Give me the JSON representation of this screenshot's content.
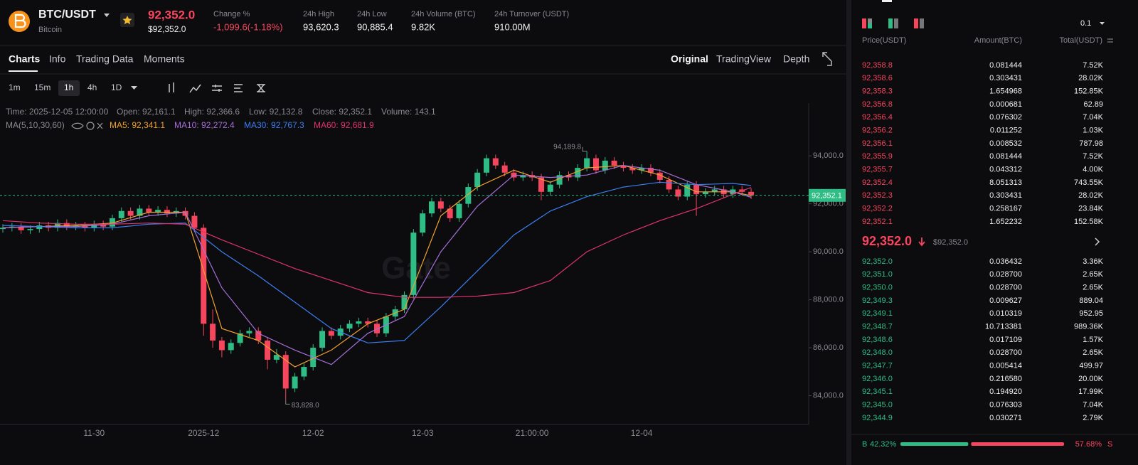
{
  "header": {
    "pair": "BTC/USDT",
    "name": "Bitcoin",
    "price": "92,352.0",
    "price_usd": "$92,352.0",
    "stats": [
      {
        "label": "Change %",
        "value": "-1,099.6(-1.18%)"
      },
      {
        "label": "24h High",
        "value": "93,620.3"
      },
      {
        "label": "24h Low",
        "value": "90,885.4"
      },
      {
        "label": "24h Volume (BTC)",
        "value": "9.82K"
      },
      {
        "label": "24h Turnover (USDT)",
        "value": "910.00M"
      }
    ]
  },
  "tabs": [
    "Charts",
    "Info",
    "Trading Data",
    "Moments"
  ],
  "views": [
    "Original",
    "TradingView",
    "Depth"
  ],
  "intervals": [
    "1m",
    "15m",
    "1h",
    "4h",
    "1D"
  ],
  "ohlc_info": [
    "Time: 2025-12-05 12:00:00",
    "Open: 92,161.1",
    "High: 92,366.6",
    "Low: 92,132.8",
    "Close: 92,352.1",
    "Volume: 143.1"
  ],
  "ma_title": "MA(5,10,30,60)",
  "chart_data": {
    "type": "candlestick",
    "watermark": "Gate",
    "up_color": "#2ebd85",
    "down_color": "#f6465d",
    "ylim": [
      82800,
      96200
    ],
    "yticks": [
      {
        "value": 84000,
        "label": "84,000.0"
      },
      {
        "value": 86000,
        "label": "86,000.0"
      },
      {
        "value": 88000,
        "label": "88,000.0"
      },
      {
        "value": 90000,
        "label": "90,000.0"
      },
      {
        "value": 92000,
        "label": "92,000.0"
      },
      {
        "value": 94000,
        "label": "94,000.0"
      }
    ],
    "grid": false,
    "categories": [
      null,
      null,
      null,
      null,
      null,
      null,
      null,
      null,
      null,
      null,
      "11-30",
      null,
      null,
      null,
      null,
      null,
      null,
      null,
      null,
      null,
      null,
      null,
      "2025-12",
      null,
      null,
      null,
      null,
      null,
      null,
      null,
      null,
      null,
      null,
      null,
      "12-02",
      null,
      null,
      null,
      null,
      null,
      null,
      null,
      null,
      null,
      null,
      null,
      "12-03",
      null,
      null,
      null,
      null,
      null,
      null,
      null,
      null,
      null,
      null,
      null,
      "21:00:00",
      null,
      null,
      null,
      null,
      null,
      null,
      null,
      null,
      null,
      null,
      null,
      "12-04",
      null,
      null,
      null,
      null,
      null,
      null,
      null,
      null,
      null,
      null,
      null,
      null
    ],
    "open": [
      90950,
      91000,
      91050,
      90900,
      90950,
      91100,
      91000,
      91200,
      91050,
      91100,
      91000,
      91150,
      91050,
      91400,
      91700,
      91500,
      91800,
      91650,
      91750,
      91600,
      91700,
      91500,
      91000,
      87000,
      86300,
      85900,
      86200,
      86600,
      86700,
      86300,
      85500,
      85700,
      84300,
      84800,
      85200,
      86000,
      86700,
      86500,
      86800,
      87000,
      87100,
      87000,
      86600,
      87300,
      87600,
      88200,
      90800,
      91600,
      92100,
      91800,
      91400,
      92000,
      92700,
      93300,
      93900,
      93600,
      93300,
      93100,
      93200,
      93100,
      92500,
      92800,
      93200,
      93100,
      93500,
      93900,
      93400,
      93800,
      93600,
      93500,
      93400,
      93500,
      93300,
      93000,
      92600,
      92300,
      92800,
      92400,
      92500,
      92600,
      92400,
      92600,
      92500
    ],
    "high": [
      91150,
      91200,
      91200,
      91100,
      91250,
      91250,
      91350,
      91350,
      91250,
      91250,
      91300,
      91300,
      91550,
      91850,
      91850,
      91950,
      91950,
      91900,
      91900,
      91850,
      91850,
      91650,
      91150,
      87600,
      86450,
      86350,
      86750,
      86850,
      86850,
      86450,
      85950,
      85850,
      84950,
      85350,
      86150,
      86850,
      86850,
      86950,
      87150,
      87250,
      87250,
      87150,
      87450,
      87750,
      88350,
      90950,
      91750,
      92250,
      92250,
      91950,
      92150,
      92850,
      93450,
      94050,
      94050,
      93750,
      93450,
      93350,
      93350,
      93250,
      92950,
      93350,
      93350,
      93650,
      94189.8,
      94050,
      93950,
      93950,
      93750,
      93650,
      93650,
      93650,
      93450,
      93150,
      92750,
      92950,
      92950,
      92650,
      92750,
      92750,
      92750,
      92750,
      92650
    ],
    "low": [
      90800,
      90850,
      90750,
      90750,
      90800,
      90850,
      90850,
      90900,
      90900,
      90850,
      90850,
      90900,
      90900,
      91250,
      91350,
      91350,
      91500,
      91500,
      91450,
      91450,
      91350,
      90850,
      86500,
      86000,
      85600,
      85750,
      86050,
      86450,
      86150,
      85100,
      85350,
      83828,
      84150,
      84650,
      85050,
      85850,
      86350,
      86350,
      86650,
      86850,
      86850,
      86450,
      86450,
      87150,
      87450,
      88050,
      90650,
      91450,
      91650,
      91250,
      91250,
      91850,
      92550,
      93150,
      93450,
      93150,
      92950,
      92950,
      92950,
      92150,
      92350,
      92650,
      92950,
      92950,
      93350,
      93250,
      93250,
      93450,
      93350,
      93250,
      93250,
      93150,
      92850,
      92450,
      92150,
      92150,
      91500,
      92250,
      92350,
      92250,
      92250,
      92350,
      92200
    ],
    "close": [
      91000,
      91050,
      90900,
      90950,
      91100,
      91000,
      91200,
      91050,
      91100,
      91000,
      91150,
      91050,
      91400,
      91700,
      91500,
      91800,
      91650,
      91750,
      91600,
      91700,
      91500,
      91000,
      87000,
      86300,
      85900,
      86200,
      86600,
      86700,
      86300,
      85500,
      85700,
      84300,
      84800,
      85200,
      86000,
      86700,
      86500,
      86800,
      87000,
      87100,
      87000,
      86600,
      87300,
      87600,
      88200,
      90800,
      91600,
      92100,
      91800,
      91400,
      92000,
      92700,
      93300,
      93900,
      93600,
      93300,
      93100,
      93200,
      93100,
      92500,
      92800,
      93200,
      93100,
      93500,
      93900,
      93400,
      93800,
      93600,
      93500,
      93400,
      93500,
      93300,
      93000,
      92600,
      92300,
      92800,
      92400,
      92500,
      92600,
      92400,
      92600,
      92500,
      92352.1
    ],
    "max_label": "94,189.8",
    "min_label": "83,828.0",
    "last_label": "92,352.1",
    "series": [
      {
        "name": "MA5: 92,341.1",
        "color": "#f0a02c",
        "x": [
          0,
          4,
          8,
          12,
          16,
          20,
          24,
          28,
          32,
          36,
          40,
          44,
          48,
          52,
          56,
          60,
          64,
          68,
          72,
          76,
          80,
          82
        ],
        "values": [
          91000,
          91050,
          91100,
          91200,
          91650,
          91650,
          86800,
          86300,
          85200,
          85900,
          87000,
          87600,
          91500,
          92700,
          93400,
          92900,
          93500,
          93600,
          93200,
          92500,
          92500,
          92341.1
        ]
      },
      {
        "name": "MA10: 92,272.4",
        "color": "#a66fd8",
        "x": [
          0,
          4,
          8,
          12,
          16,
          20,
          24,
          28,
          32,
          36,
          40,
          44,
          48,
          52,
          56,
          60,
          64,
          68,
          72,
          76,
          80,
          82
        ],
        "values": [
          91000,
          91050,
          91050,
          91150,
          91500,
          91650,
          88500,
          86600,
          85900,
          85300,
          86600,
          87300,
          90000,
          91900,
          93200,
          93100,
          93200,
          93600,
          93400,
          92800,
          92500,
          92272.4
        ]
      },
      {
        "name": "MA30: 92,767.3",
        "color": "#3b7ff0",
        "x": [
          0,
          4,
          8,
          12,
          16,
          20,
          24,
          28,
          32,
          36,
          40,
          44,
          48,
          52,
          56,
          60,
          64,
          68,
          72,
          76,
          80,
          82
        ],
        "values": [
          91100,
          91050,
          91000,
          91000,
          91150,
          91200,
          90000,
          89000,
          87900,
          86800,
          86200,
          86300,
          87700,
          89200,
          90700,
          91700,
          92300,
          92700,
          92900,
          92800,
          92850,
          92767.3
        ]
      },
      {
        "name": "MA60: 92,681.9",
        "color": "#e0336c",
        "x": [
          0,
          4,
          8,
          12,
          16,
          20,
          24,
          28,
          32,
          36,
          40,
          44,
          48,
          52,
          56,
          60,
          64,
          68,
          72,
          76,
          80,
          82
        ],
        "values": [
          91300,
          91200,
          91150,
          91150,
          91200,
          91150,
          90500,
          89900,
          89300,
          88800,
          88300,
          88100,
          88100,
          88150,
          88300,
          88800,
          90000,
          90700,
          91300,
          91800,
          92400,
          92681.9
        ]
      }
    ]
  },
  "order_book": {
    "step": "0.1",
    "headers": [
      "Price(USDT)",
      "Amount(BTC)",
      "Total(USDT)"
    ],
    "asks": [
      [
        "92,358.8",
        "0.081444",
        "7.52K"
      ],
      [
        "92,358.6",
        "0.303431",
        "28.02K"
      ],
      [
        "92,358.3",
        "1.654968",
        "152.85K"
      ],
      [
        "92,356.8",
        "0.000681",
        "62.89"
      ],
      [
        "92,356.4",
        "0.076302",
        "7.04K"
      ],
      [
        "92,356.2",
        "0.011252",
        "1.03K"
      ],
      [
        "92,356.1",
        "0.008532",
        "787.98"
      ],
      [
        "92,355.9",
        "0.081444",
        "7.52K"
      ],
      [
        "92,355.7",
        "0.043312",
        "4.00K"
      ],
      [
        "92,352.4",
        "8.051313",
        "743.55K"
      ],
      [
        "92,352.3",
        "0.303431",
        "28.02K"
      ],
      [
        "92,352.2",
        "0.258167",
        "23.84K"
      ],
      [
        "92,352.1",
        "1.652232",
        "152.58K"
      ]
    ],
    "mid_price": "92,352.0",
    "mid_usd": "$92,352.0",
    "bids": [
      [
        "92,352.0",
        "0.036432",
        "3.36K"
      ],
      [
        "92,351.0",
        "0.028700",
        "2.65K"
      ],
      [
        "92,350.0",
        "0.028700",
        "2.65K"
      ],
      [
        "92,349.3",
        "0.009627",
        "889.04"
      ],
      [
        "92,349.1",
        "0.010319",
        "952.95"
      ],
      [
        "92,348.7",
        "10.713381",
        "989.36K"
      ],
      [
        "92,348.6",
        "0.017109",
        "1.57K"
      ],
      [
        "92,348.0",
        "0.028700",
        "2.65K"
      ],
      [
        "92,347.7",
        "0.005414",
        "499.97"
      ],
      [
        "92,346.0",
        "0.216580",
        "20.00K"
      ],
      [
        "92,345.1",
        "0.194920",
        "17.99K"
      ],
      [
        "92,345.0",
        "0.076303",
        "7.04K"
      ],
      [
        "92,344.9",
        "0.030271",
        "2.79K"
      ]
    ],
    "ratio": {
      "buy_letter": "B",
      "buy": {
        "value": 42.32,
        "label": "42.32%"
      },
      "sell": {
        "value": 57.68,
        "label": "57.68%"
      },
      "sell_letter": "S"
    }
  }
}
